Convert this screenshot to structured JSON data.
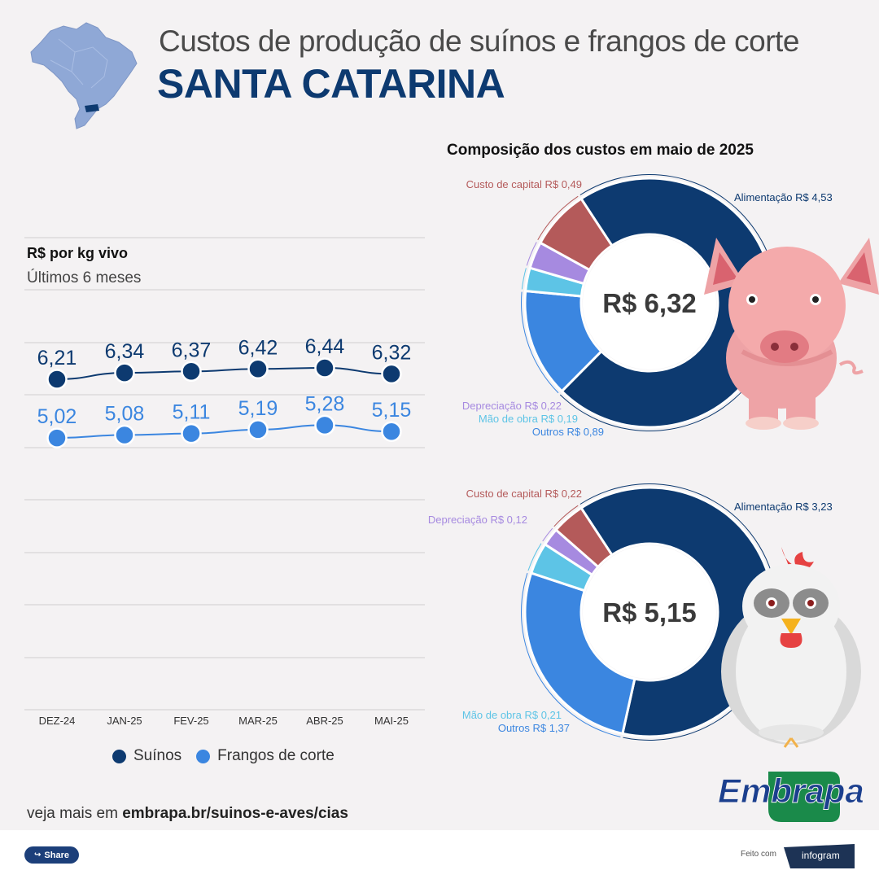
{
  "header": {
    "title": "Custos de produção de suínos e frangos de corte",
    "region": "SANTA CATARINA"
  },
  "colors": {
    "suinos": "#0d3a70",
    "frangos": "#3b86e0",
    "alimentacao": "#0d3a70",
    "custo_capital": "#b45a5a",
    "depreciacao": "#a68ae0",
    "mao_obra": "#5dc4e6",
    "outros": "#3b86e0"
  },
  "line_chart": {
    "title": "R$ por kg vivo",
    "subtitle": "Últimos 6 meses"
  },
  "chart_data": [
    {
      "type": "line",
      "title": "R$ por kg vivo",
      "subtitle": "Últimos 6 meses",
      "categories": [
        "DEZ-24",
        "JAN-25",
        "FEV-25",
        "MAR-25",
        "ABR-25",
        "MAI-25"
      ],
      "series": [
        {
          "name": "Suínos",
          "values": [
            6.21,
            6.34,
            6.37,
            6.42,
            6.44,
            6.32
          ],
          "labels": [
            "6,21",
            "6,34",
            "6,37",
            "6,42",
            "6,44",
            "6,32"
          ]
        },
        {
          "name": "Frangos de corte",
          "values": [
            5.02,
            5.08,
            5.11,
            5.19,
            5.28,
            5.15
          ],
          "labels": [
            "5,02",
            "5,08",
            "5,11",
            "5,19",
            "5,28",
            "5,15"
          ]
        }
      ],
      "grid": true,
      "legend": "bottom"
    },
    {
      "type": "pie",
      "title": "Composição dos custos em maio de 2025",
      "center_label": "R$ 6,32",
      "slices": [
        {
          "key": "alimentacao",
          "label": "Alimentação R$ 4,53",
          "value": 4.53
        },
        {
          "key": "outros",
          "label": "Outros R$ 0,89",
          "value": 0.89
        },
        {
          "key": "mao_obra",
          "label": "Mão de obra R$ 0,19",
          "value": 0.19
        },
        {
          "key": "depreciacao",
          "label": "Depreciação R$ 0,22",
          "value": 0.22
        },
        {
          "key": "custo_capital",
          "label": "Custo de capital R$ 0,49",
          "value": 0.49
        }
      ]
    },
    {
      "type": "pie",
      "title": "",
      "center_label": "R$ 5,15",
      "slices": [
        {
          "key": "alimentacao",
          "label": "Alimentação R$ 3,23",
          "value": 3.23
        },
        {
          "key": "outros",
          "label": "Outros R$ 1,37",
          "value": 1.37
        },
        {
          "key": "mao_obra",
          "label": "Mão de obra R$ 0,21",
          "value": 0.21
        },
        {
          "key": "depreciacao",
          "label": "Depreciação R$ 0,12",
          "value": 0.12
        },
        {
          "key": "custo_capital",
          "label": "Custo de capital R$ 0,22",
          "value": 0.22
        }
      ]
    }
  ],
  "legend": {
    "suinos": "Suínos",
    "frangos": "Frangos de corte"
  },
  "donut_section": {
    "title": "Composição dos custos em maio de 2025"
  },
  "footer": {
    "prefix": "veja mais em ",
    "link": "embrapa.br/suinos-e-aves/cias"
  },
  "brand": {
    "embrapa": "Embrapa"
  },
  "bottom_bar": {
    "share_label": "Share",
    "share_icon": "share-icon",
    "feito_com": "Feito com",
    "infogram": "infogram"
  }
}
